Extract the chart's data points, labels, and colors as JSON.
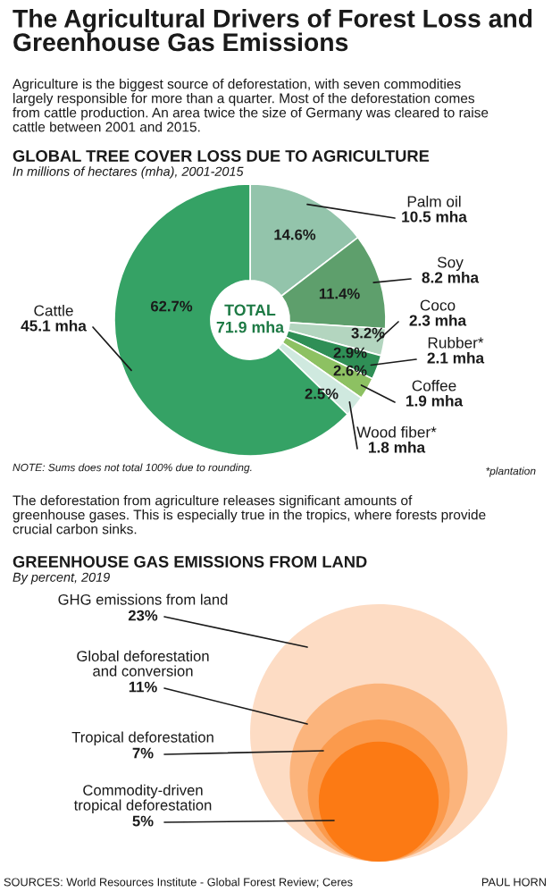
{
  "chart_data": [
    {
      "type": "donut",
      "title": "GLOBAL TREE COVER LOSS DUE TO AGRICULTURE",
      "subtitle": "In millions of hectares (mha), 2001-2015",
      "categories": [
        "Palm oil\n10.5 mha",
        "Soy\n8.2 mha",
        "Coco\n2.3 mha",
        "Rubber*\n2.1 mha",
        "Coffee\n1.9 mha",
        "Wood fiber*\n1.8 mha",
        "Cattle\n45.1 mha"
      ],
      "values": [
        14.6,
        11.4,
        3.2,
        2.9,
        2.6,
        2.5,
        62.7
      ],
      "colors": [
        "#93c4ab",
        "#5e9f6c",
        "#b3d5bf",
        "#2f8f56",
        "#8dc162",
        "#cfe9df",
        "#35a265"
      ],
      "value_labels": [
        "14.6%",
        "11.4%",
        "3.2%",
        "2.9%",
        "2.6%",
        "2.5%",
        "62.7%"
      ],
      "annotations": [
        "The Agricultural Drivers of Forest Loss and\nGreenhouse Gas Emissions",
        "Agriculture is the biggest source of deforestation, with seven commodities\nlargely responsible for more than a quarter. Most of the deforestation comes\nfrom cattle production. An area twice the size of Germany was cleared to raise\ncattle between 2001 and 2015.",
        "TOTAL\n71.9 mha",
        "NOTE: Sums does not total 100% due to rounding.",
        "*plantation"
      ]
    },
    {
      "type": "other",
      "title": "GREENHOUSE GAS EMISSIONS FROM LAND",
      "subtitle": "By percent, 2019",
      "categories": [
        "GHG emissions from land",
        "Global deforestation\nand conversion",
        "Tropical deforestation",
        "Commodity-driven\ntropical deforestation"
      ],
      "values": [
        23,
        11,
        7,
        5
      ],
      "colors": [
        "#fddcc4",
        "#fbb47c",
        "#fb9a4c",
        "#fc7a14"
      ],
      "value_labels": [
        "23%",
        "11%",
        "7%",
        "5%"
      ],
      "annotations": [
        "The deforestation from agriculture releases significant amounts of\ngreenhouse gases. This is especially true in the tropics, where forests provide\ncrucial carbon sinks.",
        "SOURCES: World Resources Institute - Global Forest Review; Ceres",
        "PAUL HORN"
      ]
    }
  ]
}
